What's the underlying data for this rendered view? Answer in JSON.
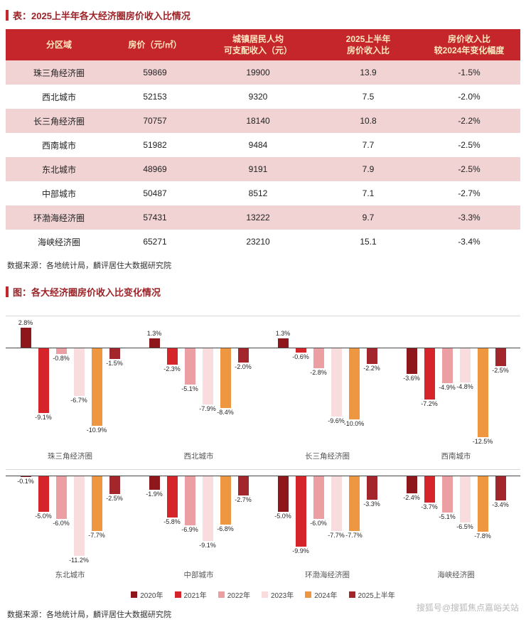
{
  "page": {
    "table_title": "表：2025上半年各大经济圈房价收入比情况",
    "chart_title": "图：各大经济圈房价收入比变化情况",
    "source_note": "数据来源：各地统计局，麟评居住大数据研究院",
    "watermark": "搜狐号@搜狐焦点嘉峪关站"
  },
  "table": {
    "headers": [
      "分区域",
      "房价（元/㎡）",
      "城镇居民人均\n可支配收入（元）",
      "2025上半年\n房价收入比",
      "房价收入比\n较2024年变化幅度"
    ],
    "rows": [
      [
        "珠三角经济圈",
        "59869",
        "19900",
        "13.9",
        "-1.5%"
      ],
      [
        "西北城市",
        "52153",
        "9320",
        "7.5",
        "-2.0%"
      ],
      [
        "长三角经济圈",
        "70757",
        "18140",
        "10.8",
        "-2.2%"
      ],
      [
        "西南城市",
        "51982",
        "9484",
        "7.7",
        "-2.5%"
      ],
      [
        "东北城市",
        "48969",
        "9191",
        "7.9",
        "-2.5%"
      ],
      [
        "中部城市",
        "50487",
        "8512",
        "7.1",
        "-2.7%"
      ],
      [
        "环渤海经济圈",
        "57431",
        "13222",
        "9.7",
        "-3.3%"
      ],
      [
        "海峡经济圈",
        "65271",
        "23210",
        "15.1",
        "-3.4%"
      ]
    ]
  },
  "chart_data": {
    "type": "bar",
    "title": "图：各大经济圈房价收入比变化情况",
    "unit": "%",
    "ylim": [
      -13,
      3
    ],
    "grid": false,
    "legend_position": "bottom",
    "legend": [
      {
        "label": "2020年",
        "color": "#8e171c"
      },
      {
        "label": "2021年",
        "color": "#d5252b"
      },
      {
        "label": "2022年",
        "color": "#ec9fa3"
      },
      {
        "label": "2023年",
        "color": "#f9dcdd"
      },
      {
        "label": "2024年",
        "color": "#ef9740"
      },
      {
        "label": "2025上半年",
        "color": "#a3262c"
      }
    ],
    "rows": [
      [
        {
          "name": "珠三角经济圈",
          "values": [
            2.8,
            -9.1,
            -0.8,
            -6.7,
            -10.9,
            -1.5
          ]
        },
        {
          "name": "西北城市",
          "values": [
            1.3,
            -2.3,
            -5.1,
            -7.9,
            -8.4,
            -2.0
          ]
        },
        {
          "name": "长三角经济圈",
          "values": [
            1.3,
            -0.6,
            -2.8,
            -9.6,
            -10.0,
            -2.2
          ]
        },
        {
          "name": "西南城市",
          "values": [
            -3.6,
            -7.2,
            -4.9,
            -4.8,
            -12.5,
            -2.5
          ]
        }
      ],
      [
        {
          "name": "东北城市",
          "values": [
            -0.1,
            -5.0,
            -6.0,
            -11.2,
            -7.7,
            -2.5
          ]
        },
        {
          "name": "中部城市",
          "values": [
            -1.9,
            -5.8,
            -6.9,
            -9.1,
            -6.8,
            -2.7
          ]
        },
        {
          "name": "环渤海经济圈",
          "values": [
            -5.0,
            -9.9,
            -6.0,
            -7.7,
            -7.7,
            -3.3
          ]
        },
        {
          "name": "海峡经济圈",
          "values": [
            -2.4,
            -3.7,
            -5.1,
            -6.5,
            -7.8,
            -3.4
          ]
        }
      ]
    ]
  }
}
